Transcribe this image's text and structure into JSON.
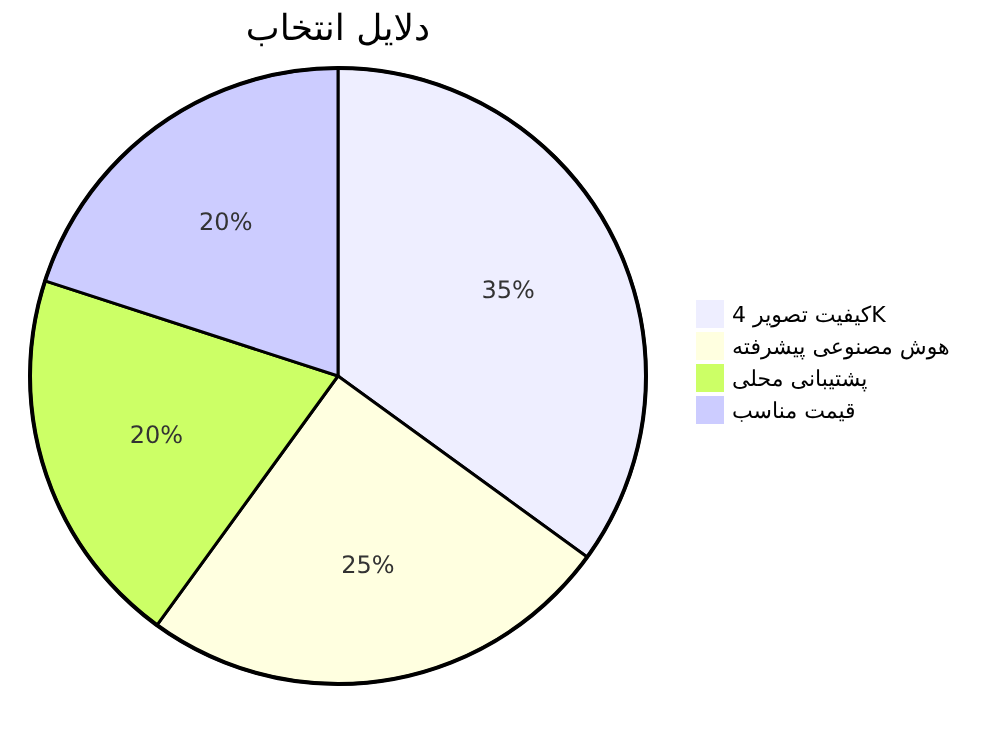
{
  "chart_data": {
    "type": "pie",
    "title": "دلایل انتخاب",
    "categories": [
      "کیفیت تصویر 4K",
      "هوش مصنوعی پیشرفته",
      "پشتیبانی محلی",
      "قیمت مناسب"
    ],
    "values": [
      35,
      25,
      20,
      20
    ],
    "value_labels": [
      "35%",
      "25%",
      "20%",
      "20%"
    ],
    "colors": [
      "#eeeeff",
      "#ffffe0",
      "#ccff66",
      "#ccccff"
    ],
    "legend": "right"
  }
}
